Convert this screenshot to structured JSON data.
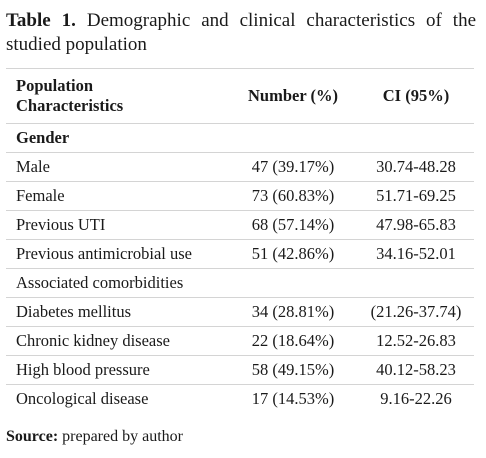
{
  "caption": {
    "label": "Table 1.",
    "text": "Demographic and clinical characteristics of the studied population"
  },
  "table": {
    "headers": {
      "characteristic": "Population Characteristics",
      "number": "Number (%)",
      "ci": "CI (95%)"
    },
    "rows": [
      {
        "label": "Gender",
        "number": "",
        "ci": "",
        "section": true,
        "bold": true
      },
      {
        "label": "Male",
        "number": "47 (39.17%)",
        "ci": "30.74-48.28"
      },
      {
        "label": "Female",
        "number": "73 (60.83%)",
        "ci": "51.71-69.25"
      },
      {
        "label": "Previous UTI",
        "number": "68 (57.14%)",
        "ci": "47.98-65.83"
      },
      {
        "label": "Previous antimicrobial use",
        "number": "51 (42.86%)",
        "ci": "34.16-52.01"
      },
      {
        "label": "Associated comorbidities",
        "number": "",
        "ci": "",
        "section": true,
        "bold": false
      },
      {
        "label": "Diabetes mellitus",
        "number": "34 (28.81%)",
        "ci": "(21.26-37.74)"
      },
      {
        "label": "Chronic kidney disease",
        "number": "22 (18.64%)",
        "ci": "12.52-26.83"
      },
      {
        "label": "High blood pressure",
        "number": "58 (49.15%)",
        "ci": "40.12-58.23"
      },
      {
        "label": "Oncological disease",
        "number": "17 (14.53%)",
        "ci": "9.16-22.26"
      }
    ]
  },
  "source": {
    "label": "Source:",
    "text": "prepared by author"
  }
}
